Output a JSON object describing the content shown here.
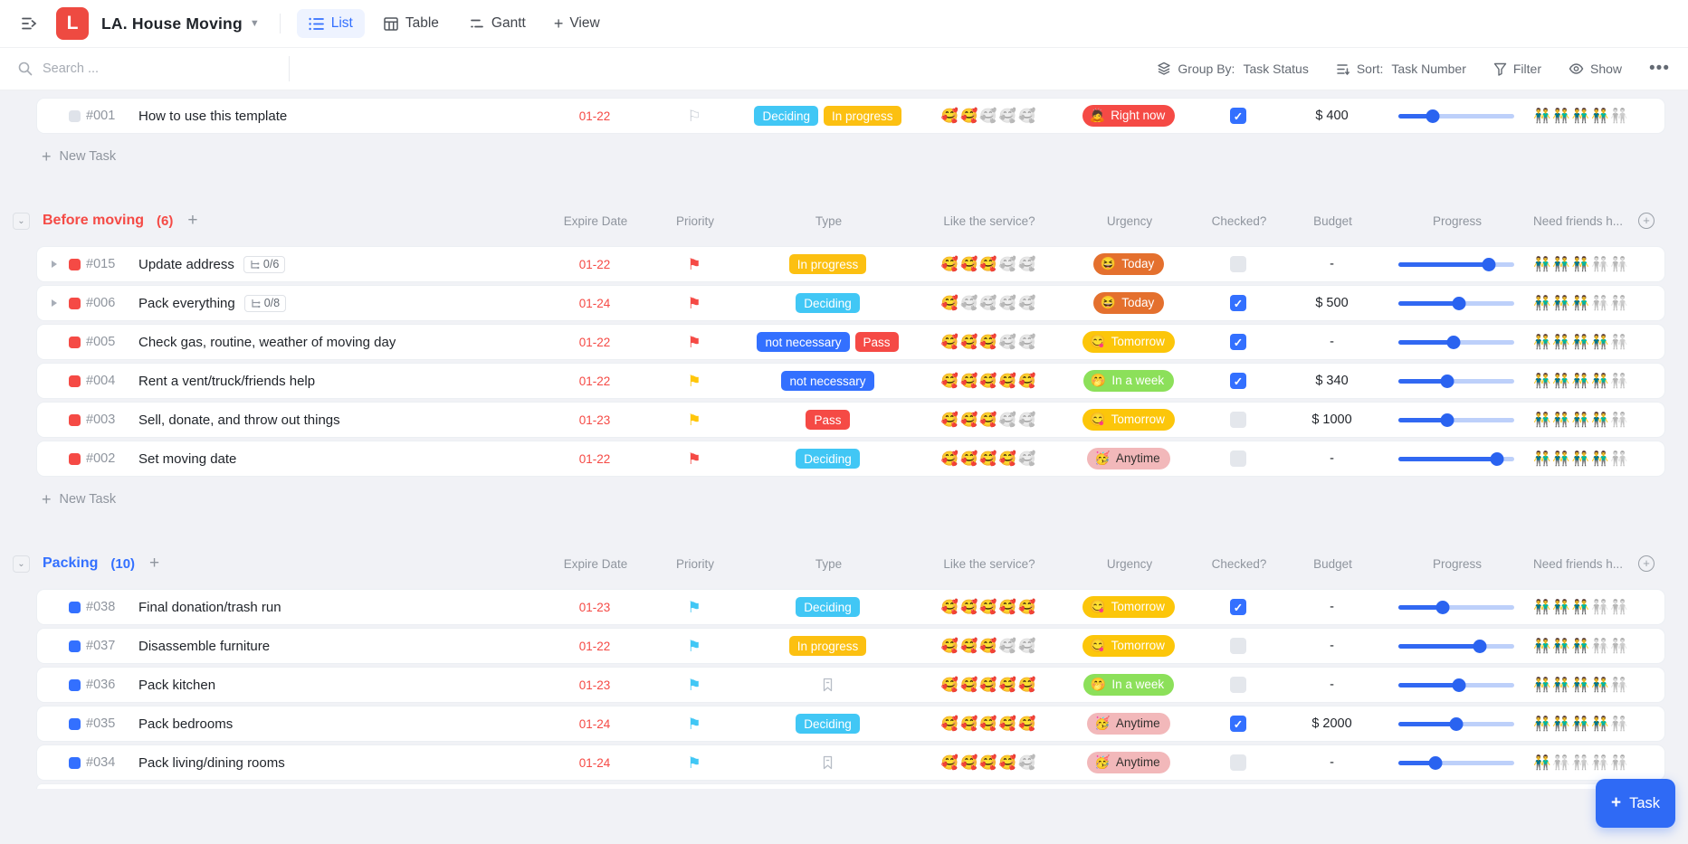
{
  "topbar": {
    "logo_letter": "L",
    "title": "LA. House Moving",
    "tabs": [
      {
        "label": "List",
        "active": true
      },
      {
        "label": "Table",
        "active": false
      },
      {
        "label": "Gantt",
        "active": false
      }
    ],
    "view_button": "View"
  },
  "toolbar": {
    "search_placeholder": "Search ...",
    "group_by_label": "Group By:",
    "group_by_value": "Task Status",
    "sort_label": "Sort:",
    "sort_value": "Task Number",
    "filter_label": "Filter",
    "show_label": "Show"
  },
  "columns": [
    "Expire Date",
    "Priority",
    "Type",
    "Like the service?",
    "Urgency",
    "Checked?",
    "Budget",
    "Progress",
    "Need friends h..."
  ],
  "new_task_label": "New Task",
  "task_button_label": "Task",
  "rating_emoji": "🥰",
  "friends_emoji": "👬",
  "palette": {
    "accent_blue": "#3370ff",
    "cyan": "#41c7f5",
    "yellow": "#fcc011",
    "red": "#f54a45",
    "orange": "#e4702e",
    "green": "#8ce05a",
    "pink": "#f2b8ba"
  },
  "type_styles": {
    "Deciding": {
      "bg": "#41c7f5"
    },
    "In progress": {
      "bg": "#fcc011"
    },
    "not necessary": {
      "bg": "#3370ff"
    },
    "Pass": {
      "bg": "#f54a45"
    }
  },
  "urgency_styles": {
    "Right now": {
      "bg": "#f54a45",
      "text": "#ffffff",
      "emoji": "🙇"
    },
    "Today": {
      "bg": "#e4702e",
      "text": "#ffffff",
      "emoji": "😆"
    },
    "Tomorrow": {
      "bg": "#fcc60a",
      "text": "#ffffff",
      "emoji": "😋"
    },
    "In a week": {
      "bg": "#8ce05a",
      "text": "#ffffff",
      "emoji": "🤭"
    },
    "Anytime": {
      "bg": "#f2b8ba",
      "text": "#33302e",
      "emoji": "🥳"
    }
  },
  "priority_colors": {
    "red": "#f54a45",
    "yellow": "#ffc60a",
    "blue": "#41c7f5",
    "none": "#c3c9d1"
  },
  "groups": [
    {
      "title": null,
      "count_label": "",
      "color": "#8f959e",
      "dot": "#dfe3ea",
      "show_new_task": true,
      "sliver": false,
      "rows": [
        {
          "number": "#001",
          "title": "How to use this template",
          "subtasks": null,
          "expandable": false,
          "date": "01-22",
          "priority": "none",
          "types": [
            "Deciding",
            "In progress"
          ],
          "like": 2,
          "urgency": "Right now",
          "checked": true,
          "budget": "$ 400",
          "progress": 30,
          "friends": 4
        }
      ]
    },
    {
      "title": "Before moving",
      "count_label": "(6)",
      "color": "#f54a45",
      "dot": "#f54a45",
      "show_new_task": true,
      "sliver": false,
      "rows": [
        {
          "number": "#015",
          "title": "Update address",
          "subtasks": "0/6",
          "expandable": true,
          "date": "01-22",
          "priority": "red",
          "types": [
            "In progress"
          ],
          "like": 3,
          "urgency": "Today",
          "checked": false,
          "budget": "-",
          "progress": 78,
          "friends": 3
        },
        {
          "number": "#006",
          "title": "Pack everything",
          "subtasks": "0/8",
          "expandable": true,
          "date": "01-24",
          "priority": "red",
          "types": [
            "Deciding"
          ],
          "like": 1,
          "urgency": "Today",
          "checked": true,
          "budget": "$ 500",
          "progress": 52,
          "friends": 3
        },
        {
          "number": "#005",
          "title": "Check gas, routine, weather of moving day",
          "subtasks": null,
          "expandable": false,
          "date": "01-22",
          "priority": "red",
          "types": [
            "not necessary",
            "Pass"
          ],
          "like": 3,
          "urgency": "Tomorrow",
          "checked": true,
          "budget": "-",
          "progress": 48,
          "friends": 4
        },
        {
          "number": "#004",
          "title": "Rent a vent/truck/friends help",
          "subtasks": null,
          "expandable": false,
          "date": "01-22",
          "priority": "yellow",
          "types": [
            "not necessary"
          ],
          "like": 5,
          "urgency": "In a week",
          "checked": true,
          "budget": "$ 340",
          "progress": 42,
          "friends": 4
        },
        {
          "number": "#003",
          "title": "Sell, donate, and throw out things",
          "subtasks": null,
          "expandable": false,
          "date": "01-23",
          "priority": "yellow",
          "types": [
            "Pass"
          ],
          "like": 3,
          "urgency": "Tomorrow",
          "checked": false,
          "budget": "$ 1000",
          "progress": 42,
          "friends": 4
        },
        {
          "number": "#002",
          "title": "Set moving date",
          "subtasks": null,
          "expandable": false,
          "date": "01-22",
          "priority": "red",
          "types": [
            "Deciding"
          ],
          "like": 4,
          "urgency": "Anytime",
          "checked": false,
          "budget": "-",
          "progress": 85,
          "friends": 4
        }
      ]
    },
    {
      "title": "Packing",
      "count_label": "(10)",
      "color": "#3370ff",
      "dot": "#3370ff",
      "show_new_task": false,
      "sliver": true,
      "rows": [
        {
          "number": "#038",
          "title": "Final donation/trash run",
          "subtasks": null,
          "expandable": false,
          "date": "01-23",
          "priority": "blue",
          "types": [
            "Deciding"
          ],
          "like": 5,
          "urgency": "Tomorrow",
          "checked": true,
          "budget": "-",
          "progress": 38,
          "friends": 3
        },
        {
          "number": "#037",
          "title": "Disassemble furniture",
          "subtasks": null,
          "expandable": false,
          "date": "01-22",
          "priority": "blue",
          "types": [
            "In progress"
          ],
          "like": 3,
          "urgency": "Tomorrow",
          "checked": false,
          "budget": "-",
          "progress": 70,
          "friends": 3
        },
        {
          "number": "#036",
          "title": "Pack kitchen",
          "subtasks": null,
          "expandable": false,
          "date": "01-23",
          "priority": "blue",
          "types": [],
          "like": 5,
          "urgency": "In a week",
          "checked": false,
          "budget": "-",
          "progress": 52,
          "friends": 4
        },
        {
          "number": "#035",
          "title": "Pack bedrooms",
          "subtasks": null,
          "expandable": false,
          "date": "01-24",
          "priority": "blue",
          "types": [
            "Deciding"
          ],
          "like": 5,
          "urgency": "Anytime",
          "checked": true,
          "budget": "$ 2000",
          "progress": 50,
          "friends": 4
        },
        {
          "number": "#034",
          "title": "Pack living/dining rooms",
          "subtasks": null,
          "expandable": false,
          "date": "01-24",
          "priority": "blue",
          "types": [],
          "like": 4,
          "urgency": "Anytime",
          "checked": false,
          "budget": "-",
          "progress": 32,
          "friends": 1
        }
      ]
    }
  ]
}
